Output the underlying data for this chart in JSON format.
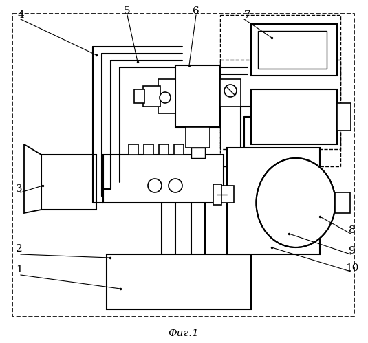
{
  "title": "Фиг.1",
  "title_fontsize": 11,
  "bg": "#ffffff",
  "lc": "#000000",
  "lw": 1.2,
  "figsize": [
    5.35,
    4.99
  ],
  "dpi": 100
}
